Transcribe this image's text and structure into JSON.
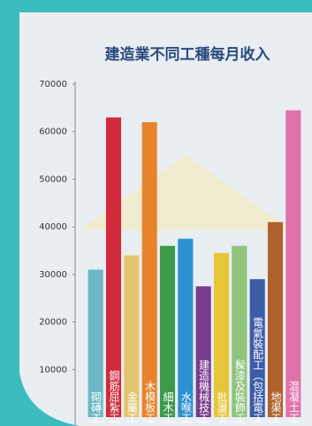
{
  "chart_data": {
    "type": "bar",
    "title": "建造業不同工種每月收入",
    "categories": [
      "砌磚工",
      "鋼筋屈紮工",
      "金屬工",
      "木模板工",
      "細木工",
      "水喉工",
      "建造機械技工",
      "批盪工",
      "髹漆及裝飾工",
      "電氣裝配工（包括電工",
      "地渠工",
      "混凝土工"
    ],
    "values": [
      31000,
      63000,
      34000,
      62000,
      36000,
      37500,
      27500,
      34500,
      36000,
      29000,
      41000,
      64500
    ],
    "colors": [
      "#6db8c2",
      "#d12a3c",
      "#e4c56e",
      "#e8832c",
      "#3c9a4c",
      "#2c90d2",
      "#7a3c8c",
      "#e6c636",
      "#8ec47c",
      "#3c5ca8",
      "#b0622c",
      "#e072aa"
    ],
    "ylim": [
      0,
      70000
    ],
    "yticks": [
      10000,
      20000,
      30000,
      40000,
      50000,
      60000,
      70000
    ]
  }
}
